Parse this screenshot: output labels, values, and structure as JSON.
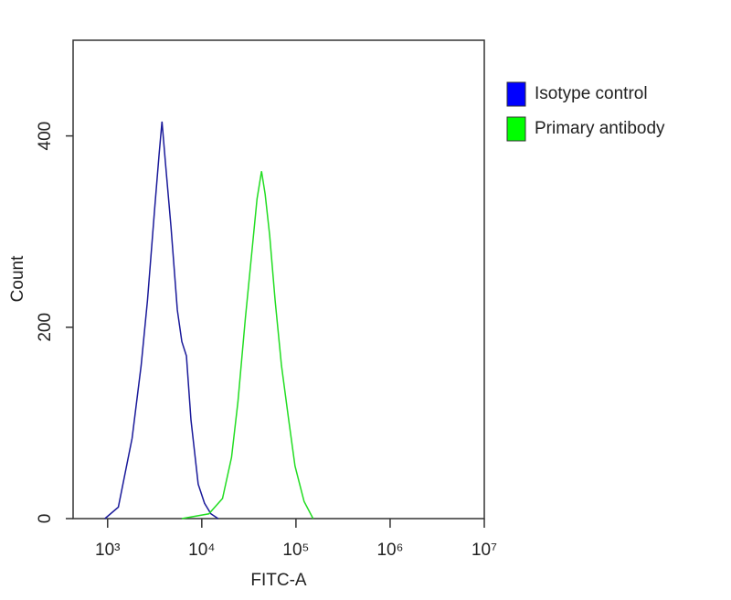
{
  "chart_data": {
    "type": "line",
    "xlabel": "FITC-A",
    "ylabel": "Count",
    "log_x": true,
    "xlim": [
      430,
      10000000
    ],
    "xticks": [
      {
        "value": 1000,
        "label": "10³"
      },
      {
        "value": 10000,
        "label": "10⁴"
      },
      {
        "value": 100000,
        "label": "10⁵"
      },
      {
        "value": 1000000,
        "label": "10⁶"
      },
      {
        "value": 10000000,
        "label": "10⁷"
      }
    ],
    "ylim": [
      0,
      500
    ],
    "yticks": [
      0,
      200,
      400
    ],
    "legend": "outside-right",
    "series": [
      {
        "name": "Isotype control",
        "color": "#0000ff",
        "x": [
          936,
          1300,
          1820,
          2270,
          2650,
          3160,
          3530,
          3780,
          4120,
          4710,
          5500,
          6140,
          6870,
          7680,
          9160,
          10700,
          12500,
          14900
        ],
        "values": [
          0,
          12,
          84,
          160,
          228,
          324,
          382,
          415,
          371,
          305,
          218,
          185,
          170,
          103,
          36,
          16,
          5,
          0
        ],
        "line_color": "#1a1a9a"
      },
      {
        "name": "Primary antibody",
        "color": "#00ff00",
        "x": [
          6140,
          11900,
          16600,
          20700,
          24200,
          29000,
          34600,
          38600,
          43100,
          47100,
          52600,
          60100,
          70200,
          83800,
          97700,
          122000,
          152000
        ],
        "values": [
          0,
          5,
          21,
          64,
          122,
          209,
          286,
          334,
          363,
          339,
          296,
          228,
          160,
          103,
          55,
          18,
          0
        ],
        "line_color": "#22dd22"
      }
    ]
  }
}
